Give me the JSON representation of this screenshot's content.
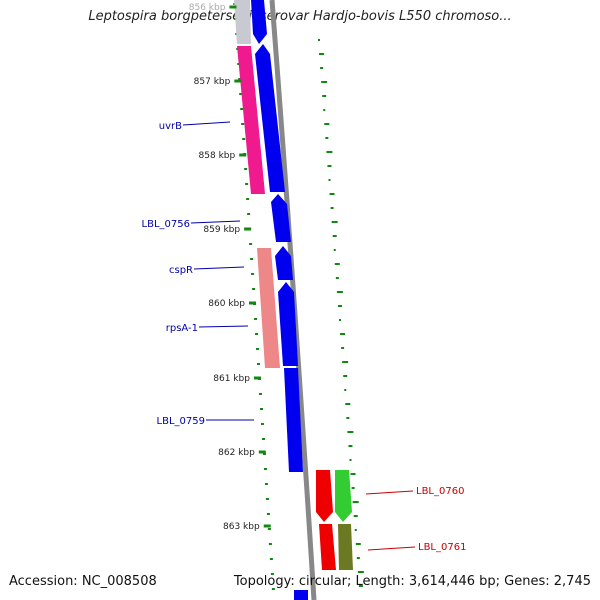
{
  "title": "Leptospira borgpetersenii serovar Hardjo-bovis L550 chromoso...",
  "footer": {
    "accession": "Accession: NC_008508",
    "stats": "Topology: circular; Length: 3,614,446 bp; Genes: 2,745"
  },
  "ruler": {
    "ticks": [
      {
        "label": "856 kbp"
      },
      {
        "label": "857 kbp"
      },
      {
        "label": "858 kbp"
      },
      {
        "label": "859 kbp"
      },
      {
        "label": "860 kbp"
      },
      {
        "label": "861 kbp"
      },
      {
        "label": "862 kbp"
      },
      {
        "label": "863 kbp"
      }
    ]
  },
  "colors": {
    "cds": "#0000ee",
    "partial_top": "#c9c9d2",
    "gene_pink": "#ee1a8e",
    "gene_salmon": "#ee8888",
    "gene_red": "#ee0000",
    "gene_green": "#33cc33",
    "gene_olive": "#6b7a22",
    "backbone": "#888888",
    "gc_dash": "#118811",
    "label_blue": "#0000aa",
    "label_red": "#cc0000"
  },
  "gene_labels_left": [
    {
      "text": "uvrB"
    },
    {
      "text": "LBL_0756"
    },
    {
      "text": "cspR"
    },
    {
      "text": "rpsA-1"
    },
    {
      "text": "LBL_0759"
    }
  ],
  "gene_labels_right": [
    {
      "text": "LBL_0760"
    },
    {
      "text": "LBL_0761"
    }
  ]
}
